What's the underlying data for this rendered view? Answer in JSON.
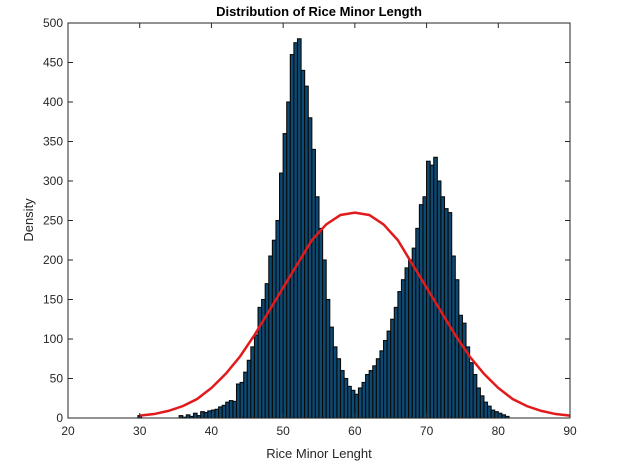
{
  "chart_data": {
    "type": "bar",
    "title": "Distribution of Rice Minor Length",
    "xlabel": "Rice Minor Lenght",
    "ylabel": "Density",
    "xlim": [
      20,
      90
    ],
    "ylim": [
      0,
      500
    ],
    "xticks": [
      "20",
      "30",
      "40",
      "50",
      "60",
      "70",
      "80",
      "90"
    ],
    "yticks": [
      "0",
      "50",
      "100",
      "150",
      "200",
      "250",
      "300",
      "350",
      "400",
      "450",
      "500"
    ],
    "grid": false,
    "legend": "none",
    "colors": {
      "bar_fill": "#0d4a73",
      "bar_edge": "#0a0a0a",
      "curve": "#e31a1c",
      "axis": "#262626"
    },
    "histogram": {
      "x": [
        30.0,
        35.75,
        36.25,
        36.75,
        37.25,
        37.75,
        38.25,
        38.75,
        39.25,
        39.75,
        40.25,
        40.75,
        41.25,
        41.75,
        42.25,
        42.75,
        43.25,
        43.75,
        44.25,
        44.75,
        45.25,
        45.75,
        46.25,
        46.75,
        47.25,
        47.75,
        48.25,
        48.75,
        49.25,
        49.75,
        50.25,
        50.75,
        51.25,
        51.75,
        52.25,
        52.75,
        53.25,
        53.75,
        54.25,
        54.75,
        55.25,
        55.75,
        56.25,
        56.75,
        57.25,
        57.75,
        58.25,
        58.75,
        59.25,
        59.75,
        60.25,
        60.75,
        61.25,
        61.75,
        62.25,
        62.75,
        63.25,
        63.75,
        64.25,
        64.75,
        65.25,
        65.75,
        66.25,
        66.75,
        67.25,
        67.75,
        68.25,
        68.75,
        69.25,
        69.75,
        70.25,
        70.75,
        71.25,
        71.75,
        72.25,
        72.75,
        73.25,
        73.75,
        74.25,
        74.75,
        75.25,
        75.75,
        76.25,
        76.75,
        77.25,
        77.75,
        78.25,
        78.75,
        79.25,
        79.75,
        80.25,
        80.75,
        81.25
      ],
      "values": [
        3,
        3,
        1,
        4,
        2,
        6,
        3,
        8,
        7,
        9,
        10,
        11,
        14,
        16,
        20,
        22,
        21,
        43,
        45,
        58,
        73,
        90,
        105,
        140,
        150,
        170,
        205,
        225,
        250,
        310,
        360,
        400,
        460,
        475,
        480,
        440,
        420,
        380,
        340,
        280,
        240,
        200,
        150,
        115,
        90,
        75,
        60,
        50,
        40,
        35,
        30,
        38,
        45,
        55,
        60,
        66,
        75,
        85,
        98,
        110,
        125,
        140,
        160,
        175,
        190,
        200,
        215,
        240,
        270,
        280,
        325,
        320,
        330,
        300,
        280,
        265,
        260,
        205,
        175,
        130,
        120,
        90,
        70,
        55,
        38,
        28,
        20,
        15,
        10,
        8,
        6,
        4,
        2
      ]
    },
    "curve": {
      "x": [
        30,
        32,
        34,
        36,
        38,
        40,
        42,
        44,
        46,
        48,
        50,
        52,
        54,
        56,
        58,
        60,
        62,
        64,
        66,
        68,
        70,
        72,
        74,
        76,
        78,
        80,
        82,
        84,
        86,
        88,
        90
      ],
      "y": [
        3,
        5,
        9,
        15,
        24,
        38,
        56,
        78,
        105,
        135,
        165,
        195,
        225,
        245,
        257,
        260,
        257,
        245,
        225,
        195,
        165,
        135,
        105,
        78,
        56,
        38,
        24,
        15,
        9,
        5,
        3
      ]
    }
  }
}
